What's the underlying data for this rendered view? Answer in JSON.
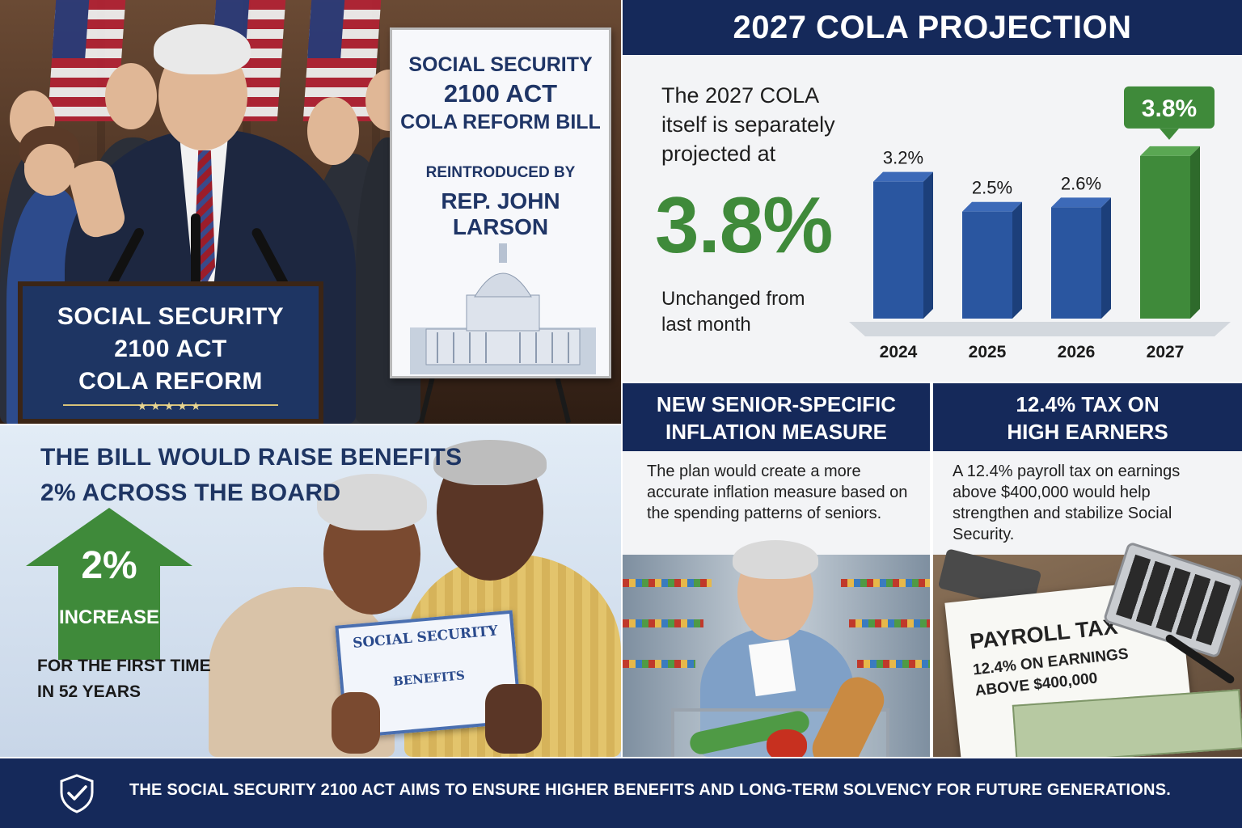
{
  "press": {
    "podium_lines": [
      "SOCIAL SECURITY",
      "2100 ACT",
      "COLA REFORM"
    ],
    "podium_stars": "★★★★★",
    "sign_title": [
      "SOCIAL SECURITY",
      "2100 ACT",
      "COLA REFORM BILL"
    ],
    "sign_reintroduced": "REINTRODUCED BY",
    "sign_rep": "REP. JOHN LARSON"
  },
  "projection": {
    "banner": "2027 COLA PROJECTION",
    "intro": "The 2027 COLA itself is separately projected at",
    "big_value": "3.8%",
    "unchanged": "Unchanged from last month"
  },
  "chart_data": {
    "type": "bar",
    "categories": [
      "2024",
      "2025",
      "2026",
      "2027"
    ],
    "values": [
      3.2,
      2.5,
      2.6,
      3.8
    ],
    "value_labels": [
      "3.2%",
      "2.5%",
      "2.6%",
      "3.8%"
    ],
    "highlight_index": 3,
    "colors": {
      "default": "#2a56a0",
      "highlight": "#3f8a3a"
    },
    "ylim": [
      0,
      4
    ],
    "grid": false,
    "title": "",
    "xlabel": "",
    "ylabel": ""
  },
  "seniors": {
    "headline": [
      "THE BILL WOULD RAISE BENEFITS",
      "2% ACROSS THE BOARD"
    ],
    "arrow_pct": "2%",
    "arrow_label": "INCREASE",
    "first_time": [
      "FOR THE FIRST TIME",
      "IN 52 YEARS"
    ],
    "card_title": "SOCIAL SECURITY",
    "card_body": "BENEFITS"
  },
  "inflation": {
    "banner": [
      "NEW SENIOR-SPECIFIC",
      "INFLATION MEASURE"
    ],
    "body": "The plan would create a more accurate inflation measure based on the spending patterns of seniors."
  },
  "tax": {
    "banner": [
      "12.4% TAX ON",
      "HIGH EARNERS"
    ],
    "body": "A 12.4% payroll tax on earnings above $400,000 would help strengthen and stabilize Social Security.",
    "paper_title": "PAYROLL TAX",
    "paper_lines": [
      "12.4% ON EARNINGS",
      "ABOVE $400,000"
    ]
  },
  "footer": {
    "text": "THE SOCIAL SECURITY 2100 ACT AIMS TO ENSURE HIGHER BENEFITS AND LONG-TERM SOLVENCY FOR FUTURE GENERATIONS.",
    "icon": "shield-check-icon"
  }
}
